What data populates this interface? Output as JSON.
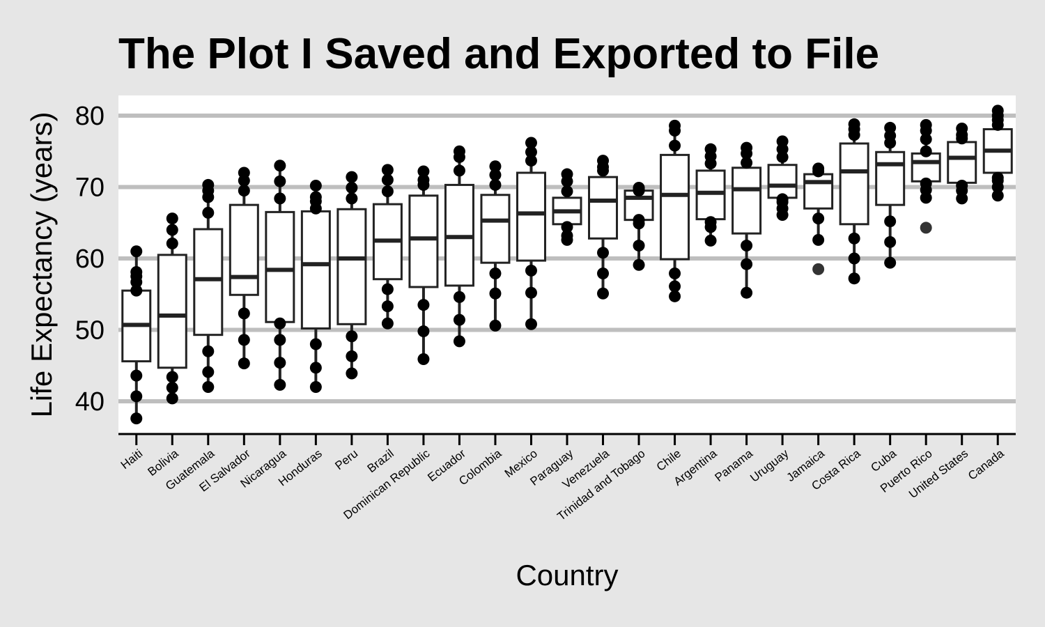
{
  "chart_data": {
    "type": "box",
    "title": "The Plot I Saved and Exported to File",
    "xlabel": "Country",
    "ylabel": "Life Expectancy (years)",
    "ylim": [
      35,
      83
    ],
    "yticks": [
      40,
      50,
      60,
      70,
      80
    ],
    "grid": "horizontal",
    "colors": {
      "background": "#e6e6e6",
      "panel": "#ffffff",
      "grid": "#bebebe",
      "ink": "#222222",
      "point": "#000000"
    },
    "categories": [
      "Haiti",
      "Bolivia",
      "Guatemala",
      "El Salvador",
      "Nicaragua",
      "Honduras",
      "Peru",
      "Brazil",
      "Dominican Republic",
      "Ecuador",
      "Colombia",
      "Mexico",
      "Paraguay",
      "Venezuela",
      "Trinidad and Tobago",
      "Chile",
      "Argentina",
      "Panama",
      "Uruguay",
      "Jamaica",
      "Costa Rica",
      "Cuba",
      "Puerto Rico",
      "United States",
      "Canada"
    ],
    "boxes": [
      {
        "q1": 45.6,
        "median": 50.7,
        "q3": 55.5
      },
      {
        "q1": 44.7,
        "median": 52.0,
        "q3": 60.5
      },
      {
        "q1": 49.3,
        "median": 57.1,
        "q3": 64.1
      },
      {
        "q1": 54.9,
        "median": 57.4,
        "q3": 67.5
      },
      {
        "q1": 51.1,
        "median": 58.4,
        "q3": 66.5
      },
      {
        "q1": 50.2,
        "median": 59.2,
        "q3": 66.6
      },
      {
        "q1": 50.8,
        "median": 60.0,
        "q3": 66.9
      },
      {
        "q1": 57.1,
        "median": 62.5,
        "q3": 67.6
      },
      {
        "q1": 56.0,
        "median": 62.8,
        "q3": 68.8
      },
      {
        "q1": 56.2,
        "median": 63.0,
        "q3": 70.3
      },
      {
        "q1": 59.4,
        "median": 65.3,
        "q3": 68.9
      },
      {
        "q1": 59.7,
        "median": 66.3,
        "q3": 72.0
      },
      {
        "q1": 64.8,
        "median": 66.6,
        "q3": 68.5
      },
      {
        "q1": 62.8,
        "median": 68.1,
        "q3": 71.4
      },
      {
        "q1": 65.4,
        "median": 68.5,
        "q3": 69.5
      },
      {
        "q1": 59.9,
        "median": 68.9,
        "q3": 74.5
      },
      {
        "q1": 65.5,
        "median": 69.2,
        "q3": 72.3
      },
      {
        "q1": 63.5,
        "median": 69.7,
        "q3": 72.7
      },
      {
        "q1": 68.5,
        "median": 70.2,
        "q3": 73.1
      },
      {
        "q1": 67.0,
        "median": 70.7,
        "q3": 71.8
      },
      {
        "q1": 64.8,
        "median": 72.2,
        "q3": 76.1
      },
      {
        "q1": 67.5,
        "median": 73.2,
        "q3": 74.9
      },
      {
        "q1": 70.8,
        "median": 73.5,
        "q3": 74.7
      },
      {
        "q1": 70.6,
        "median": 74.1,
        "q3": 76.3
      },
      {
        "q1": 72.0,
        "median": 75.1,
        "q3": 78.1
      }
    ],
    "points": [
      [
        37.6,
        40.7,
        43.6,
        45.7,
        47.6,
        49.9,
        51.5,
        53.0,
        55.5,
        56.7,
        57.5,
        58.1,
        61.0
      ],
      [
        40.4,
        41.9,
        43.4,
        45.0,
        46.7,
        50.0,
        53.9,
        57.4,
        59.9,
        62.1,
        64.0,
        65.6
      ],
      [
        42.0,
        44.1,
        47.0,
        50.0,
        52.0,
        54.3,
        56.0,
        58.5,
        61.0,
        63.1,
        66.4,
        68.6,
        69.5,
        70.3
      ],
      [
        45.3,
        48.6,
        52.3,
        55.9,
        58.2,
        56.7,
        56.6,
        63.2,
        66.8,
        69.5,
        70.9,
        72.0
      ],
      [
        42.3,
        45.4,
        48.6,
        50.9,
        54.5,
        56.0,
        59.3,
        62.2,
        65.0,
        68.4,
        70.8,
        73.0
      ],
      [
        42.0,
        44.7,
        48.0,
        50.5,
        53.9,
        57.4,
        60.9,
        64.5,
        67.0,
        68.0,
        68.6,
        70.2
      ],
      [
        43.9,
        46.3,
        49.1,
        51.4,
        54.5,
        58.0,
        61.4,
        64.1,
        66.5,
        68.4,
        69.9,
        71.4
      ],
      [
        50.9,
        53.3,
        55.7,
        57.6,
        59.5,
        61.5,
        63.3,
        65.2,
        67.1,
        69.4,
        71.0,
        72.4
      ],
      [
        45.9,
        49.8,
        53.5,
        56.8,
        59.9,
        61.8,
        63.7,
        66.0,
        68.5,
        70.3,
        71.0,
        72.2
      ],
      [
        48.4,
        51.4,
        54.6,
        56.7,
        58.9,
        61.1,
        63.3,
        65.2,
        67.0,
        69.6,
        72.3,
        74.2,
        75.0
      ],
      [
        50.6,
        55.1,
        57.9,
        59.9,
        61.6,
        63.8,
        66.7,
        67.9,
        68.4,
        70.3,
        71.7,
        72.9
      ],
      [
        50.8,
        55.2,
        58.3,
        60.1,
        62.4,
        65.0,
        67.4,
        69.5,
        71.5,
        73.7,
        74.9,
        76.2
      ],
      [
        62.6,
        63.2,
        64.4,
        65.0,
        65.9,
        66.4,
        66.9,
        67.4,
        68.2,
        69.4,
        70.8,
        71.8
      ],
      [
        55.1,
        57.9,
        60.8,
        63.0,
        65.0,
        67.5,
        68.3,
        70.2,
        71.2,
        72.3,
        72.8,
        73.7
      ],
      [
        59.1,
        61.8,
        64.9,
        65.4,
        65.9,
        68.3,
        68.8,
        69.0,
        69.9,
        69.6,
        69.5,
        69.8
      ],
      [
        54.7,
        56.1,
        57.9,
        60.5,
        63.4,
        67.1,
        70.6,
        72.9,
        74.1,
        75.8,
        77.9,
        78.6
      ],
      [
        62.5,
        64.4,
        65.1,
        65.6,
        67.1,
        68.5,
        69.9,
        70.8,
        71.9,
        73.3,
        74.3,
        75.3
      ],
      [
        55.2,
        59.2,
        61.8,
        64.4,
        66.1,
        68.7,
        70.8,
        71.9,
        73.4,
        74.7,
        75.5
      ],
      [
        66.1,
        67.0,
        67.9,
        68.3,
        68.7,
        69.5,
        69.6,
        70.2,
        71.9,
        73.0,
        74.2,
        75.3,
        76.4
      ],
      [
        62.6,
        65.6,
        67.5,
        69.0,
        70.1,
        71.0,
        71.7,
        72.2,
        72.6
      ],
      [
        57.2,
        60.0,
        62.8,
        65.4,
        67.8,
        70.8,
        73.4,
        74.8,
        75.7,
        77.3,
        78.1,
        78.8
      ],
      [
        59.4,
        62.3,
        65.2,
        68.3,
        70.7,
        72.6,
        73.7,
        74.2,
        74.4,
        76.2,
        77.2,
        78.3
      ],
      [
        68.5,
        69.6,
        70.5,
        71.6,
        73.4,
        73.8,
        74.6,
        75.0,
        76.7,
        77.9,
        78.7
      ],
      [
        68.4,
        69.5,
        70.2,
        70.8,
        71.3,
        73.4,
        74.7,
        75.0,
        76.0,
        76.8,
        77.3,
        78.2
      ],
      [
        68.8,
        70.0,
        70.9,
        71.3,
        72.1,
        74.3,
        76.3,
        77.4,
        78.7,
        79.4,
        80.0,
        80.7
      ]
    ],
    "outliers": [
      {
        "category": "Jamaica",
        "value": 58.5
      },
      {
        "category": "Puerto Rico",
        "value": 64.3
      }
    ]
  }
}
